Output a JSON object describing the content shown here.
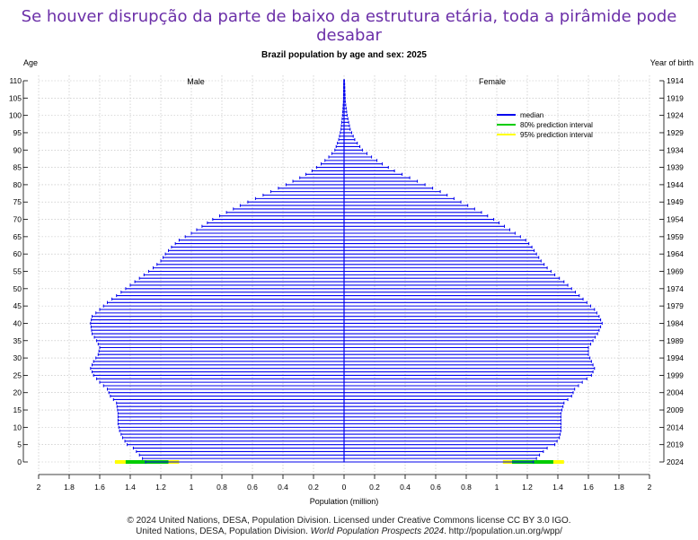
{
  "headline": "Se houver disrupção da parte de baixo da estrutura etária, toda a pirâmide pode desabar",
  "credit": {
    "line1": "© 2024 United Nations, DESA, Population Division. Licensed under Creative Commons license CC BY 3.0 IGO.",
    "line2_pre": "United Nations, DESA, Population Division. ",
    "line2_italic": "World Population Prospects 2024",
    "line2_post": ". http://population.un.org/wpp/"
  },
  "colors": {
    "median": "#0000ee",
    "pi80": "#00cc00",
    "pi95": "#ffff00",
    "grid": "#bbbbbb"
  },
  "chart_data": {
    "type": "bar",
    "orientation": "horizontal",
    "title": "Brazil population by age and sex: 2025",
    "xlabel": "Population (million)",
    "ylabel": "Age",
    "y2label": "Year of birth",
    "male_label": "Male",
    "female_label": "Female",
    "xlim": [
      -2,
      2
    ],
    "xticks": [
      -2,
      -1.8,
      -1.6,
      -1.4,
      -1.2,
      -1,
      -0.8,
      -0.6,
      -0.4,
      -0.2,
      0,
      0.2,
      0.4,
      0.6,
      0.8,
      1,
      1.2,
      1.4,
      1.6,
      1.8,
      2
    ],
    "xtick_labels": [
      "2",
      "1.8",
      "1.6",
      "1.4",
      "1.2",
      "1",
      "0.8",
      "0.6",
      "0.4",
      "0.2",
      "0",
      "0.2",
      "0.4",
      "0.6",
      "0.8",
      "1",
      "1.2",
      "1.4",
      "1.6",
      "1.8",
      "2"
    ],
    "ylim": [
      0,
      110
    ],
    "yticks": [
      0,
      5,
      10,
      15,
      20,
      25,
      30,
      35,
      40,
      45,
      50,
      55,
      60,
      65,
      70,
      75,
      80,
      85,
      90,
      95,
      100,
      105,
      110
    ],
    "birth_years": [
      2024,
      2019,
      2014,
      2009,
      2004,
      1999,
      1994,
      1989,
      1984,
      1979,
      1974,
      1969,
      1964,
      1959,
      1954,
      1949,
      1944,
      1939,
      1934,
      1929,
      1924,
      1919,
      1914
    ],
    "grid": true,
    "legend": {
      "placement": "top-right",
      "entries": [
        {
          "name": "median",
          "color": "#0000ee"
        },
        {
          "name": "80% prediction interval",
          "color": "#00cc00"
        },
        {
          "name": "95% prediction interval",
          "color": "#ffff00"
        }
      ]
    },
    "male_knots": [
      [
        0,
        1.3
      ],
      [
        2,
        1.34
      ],
      [
        4,
        1.38
      ],
      [
        5,
        1.42
      ],
      [
        7,
        1.45
      ],
      [
        9,
        1.47
      ],
      [
        11,
        1.48
      ],
      [
        14,
        1.48
      ],
      [
        17,
        1.49
      ],
      [
        19,
        1.53
      ],
      [
        21,
        1.55
      ],
      [
        23,
        1.6
      ],
      [
        25,
        1.64
      ],
      [
        27,
        1.66
      ],
      [
        29,
        1.64
      ],
      [
        31,
        1.61
      ],
      [
        33,
        1.6
      ],
      [
        35,
        1.62
      ],
      [
        37,
        1.65
      ],
      [
        40,
        1.66
      ],
      [
        42,
        1.65
      ],
      [
        44,
        1.6
      ],
      [
        46,
        1.55
      ],
      [
        48,
        1.49
      ],
      [
        50,
        1.43
      ],
      [
        52,
        1.37
      ],
      [
        54,
        1.31
      ],
      [
        56,
        1.25
      ],
      [
        58,
        1.2
      ],
      [
        60,
        1.17
      ],
      [
        62,
        1.13
      ],
      [
        64,
        1.08
      ],
      [
        66,
        1.0
      ],
      [
        68,
        0.93
      ],
      [
        70,
        0.86
      ],
      [
        72,
        0.77
      ],
      [
        74,
        0.68
      ],
      [
        76,
        0.58
      ],
      [
        78,
        0.48
      ],
      [
        80,
        0.38
      ],
      [
        82,
        0.29
      ],
      [
        84,
        0.21
      ],
      [
        86,
        0.15
      ],
      [
        88,
        0.1
      ],
      [
        90,
        0.06
      ],
      [
        93,
        0.035
      ],
      [
        96,
        0.02
      ],
      [
        100,
        0.01
      ],
      [
        104,
        0.004
      ],
      [
        110,
        0.002
      ]
    ],
    "female_knots": [
      [
        0,
        1.24
      ],
      [
        2,
        1.28
      ],
      [
        4,
        1.33
      ],
      [
        5,
        1.38
      ],
      [
        7,
        1.41
      ],
      [
        9,
        1.42
      ],
      [
        11,
        1.42
      ],
      [
        14,
        1.42
      ],
      [
        17,
        1.44
      ],
      [
        19,
        1.49
      ],
      [
        21,
        1.51
      ],
      [
        23,
        1.56
      ],
      [
        25,
        1.62
      ],
      [
        27,
        1.64
      ],
      [
        29,
        1.62
      ],
      [
        31,
        1.6
      ],
      [
        33,
        1.6
      ],
      [
        35,
        1.63
      ],
      [
        37,
        1.66
      ],
      [
        40,
        1.69
      ],
      [
        42,
        1.67
      ],
      [
        44,
        1.64
      ],
      [
        46,
        1.59
      ],
      [
        48,
        1.54
      ],
      [
        50,
        1.49
      ],
      [
        52,
        1.44
      ],
      [
        54,
        1.38
      ],
      [
        56,
        1.33
      ],
      [
        58,
        1.29
      ],
      [
        60,
        1.26
      ],
      [
        62,
        1.23
      ],
      [
        64,
        1.19
      ],
      [
        66,
        1.12
      ],
      [
        68,
        1.05
      ],
      [
        70,
        0.98
      ],
      [
        72,
        0.9
      ],
      [
        74,
        0.81
      ],
      [
        76,
        0.72
      ],
      [
        78,
        0.63
      ],
      [
        80,
        0.53
      ],
      [
        82,
        0.43
      ],
      [
        84,
        0.33
      ],
      [
        86,
        0.25
      ],
      [
        88,
        0.18
      ],
      [
        90,
        0.12
      ],
      [
        93,
        0.07
      ],
      [
        96,
        0.04
      ],
      [
        100,
        0.02
      ],
      [
        104,
        0.008
      ],
      [
        110,
        0.003
      ]
    ],
    "age0_intervals": {
      "male": {
        "pi80": [
          1.15,
          1.43
        ],
        "pi95": [
          1.08,
          1.5
        ]
      },
      "female": {
        "pi80": [
          1.1,
          1.37
        ],
        "pi95": [
          1.04,
          1.44
        ]
      }
    }
  }
}
